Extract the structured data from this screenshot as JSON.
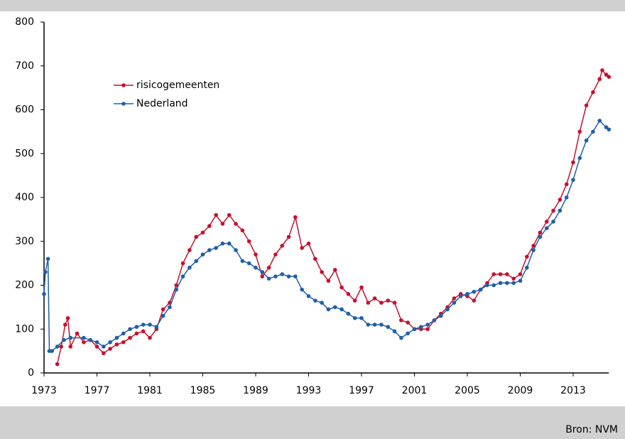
{
  "chart_data": {
    "type": "line",
    "source": "Bron: NVM",
    "xlim": [
      1973,
      2015.7
    ],
    "xticks": [
      1973,
      1977,
      1981,
      1985,
      1989,
      1993,
      1997,
      2001,
      2005,
      2009,
      2013
    ],
    "ylim": [
      0,
      800
    ],
    "yticks": [
      0,
      100,
      200,
      300,
      400,
      500,
      600,
      700,
      800
    ],
    "grid": false,
    "legend": "upper left",
    "series": [
      {
        "name": "risicogemeenten",
        "color": "#c8102e",
        "x": [
          1974,
          1974.3,
          1974.6,
          1974.8,
          1975,
          1975.5,
          1976,
          1976.5,
          1977,
          1977.5,
          1978,
          1978.5,
          1979,
          1979.5,
          1980,
          1980.5,
          1981,
          1981.5,
          1982,
          1982.5,
          1983,
          1983.5,
          1984,
          1984.5,
          1985,
          1985.5,
          1986,
          1986.5,
          1987,
          1987.5,
          1988,
          1988.5,
          1989,
          1989.5,
          1990,
          1990.5,
          1991,
          1991.5,
          1992,
          1992.5,
          1993,
          1993.5,
          1994,
          1994.5,
          1995,
          1995.5,
          1996,
          1996.5,
          1997,
          1997.5,
          1998,
          1998.5,
          1999,
          1999.5,
          2000,
          2000.5,
          2001,
          2001.5,
          2002,
          2002.5,
          2003,
          2003.5,
          2004,
          2004.5,
          2005,
          2005.5,
          2006,
          2006.5,
          2007,
          2007.5,
          2008,
          2008.5,
          2009,
          2009.5,
          2010,
          2010.5,
          2011,
          2011.5,
          2012,
          2012.5,
          2013,
          2013.5,
          2014,
          2014.5,
          2015,
          2015.2,
          2015.5,
          2015.7
        ],
        "values": [
          20,
          60,
          110,
          125,
          60,
          90,
          70,
          75,
          60,
          45,
          55,
          65,
          70,
          80,
          90,
          95,
          80,
          100,
          145,
          160,
          200,
          250,
          280,
          310,
          320,
          335,
          360,
          340,
          360,
          340,
          325,
          300,
          270,
          220,
          240,
          270,
          290,
          310,
          355,
          285,
          295,
          260,
          230,
          210,
          235,
          195,
          180,
          165,
          195,
          160,
          170,
          160,
          165,
          160,
          120,
          115,
          100,
          100,
          100,
          120,
          135,
          150,
          170,
          180,
          175,
          165,
          190,
          205,
          225,
          225,
          225,
          215,
          225,
          265,
          290,
          320,
          345,
          370,
          395,
          430,
          480,
          550,
          610,
          640,
          670,
          690,
          680,
          675
        ]
      },
      {
        "name": "Nederland",
        "color": "#1f5fa8",
        "x": [
          1973,
          1973.1,
          1973.3,
          1973.4,
          1973.6,
          1974,
          1974.5,
          1975,
          1976,
          1976.5,
          1977,
          1977.5,
          1978,
          1978.5,
          1979,
          1979.5,
          1980,
          1980.5,
          1981,
          1981.5,
          1982,
          1982.5,
          1983,
          1983.5,
          1984,
          1984.5,
          1985,
          1985.5,
          1986,
          1986.5,
          1987,
          1987.5,
          1988,
          1988.5,
          1989,
          1989.5,
          1990,
          1990.5,
          1991,
          1991.5,
          1992,
          1992.5,
          1993,
          1993.5,
          1994,
          1994.5,
          1995,
          1995.5,
          1996,
          1996.5,
          1997,
          1997.5,
          1998,
          1998.5,
          1999,
          1999.5,
          2000,
          2000.5,
          2001,
          2001.5,
          2002,
          2002.5,
          2003,
          2003.5,
          2004,
          2004.5,
          2005,
          2005.5,
          2006,
          2006.5,
          2007,
          2007.5,
          2008,
          2008.5,
          2009,
          2009.5,
          2010,
          2010.5,
          2011,
          2011.5,
          2012,
          2012.5,
          2013,
          2013.5,
          2014,
          2014.5,
          2015,
          2015.5,
          2015.7
        ],
        "values": [
          180,
          230,
          260,
          50,
          50,
          60,
          75,
          80,
          80,
          75,
          70,
          60,
          70,
          80,
          90,
          100,
          105,
          110,
          110,
          105,
          130,
          150,
          190,
          220,
          240,
          255,
          270,
          280,
          285,
          295,
          295,
          280,
          255,
          250,
          240,
          230,
          215,
          220,
          225,
          220,
          220,
          190,
          175,
          165,
          160,
          145,
          150,
          145,
          135,
          125,
          125,
          110,
          110,
          110,
          105,
          95,
          80,
          90,
          100,
          105,
          110,
          120,
          130,
          145,
          160,
          175,
          180,
          185,
          190,
          200,
          200,
          205,
          205,
          205,
          210,
          240,
          280,
          310,
          330,
          345,
          370,
          400,
          440,
          490,
          530,
          550,
          575,
          560,
          555
        ]
      }
    ]
  }
}
